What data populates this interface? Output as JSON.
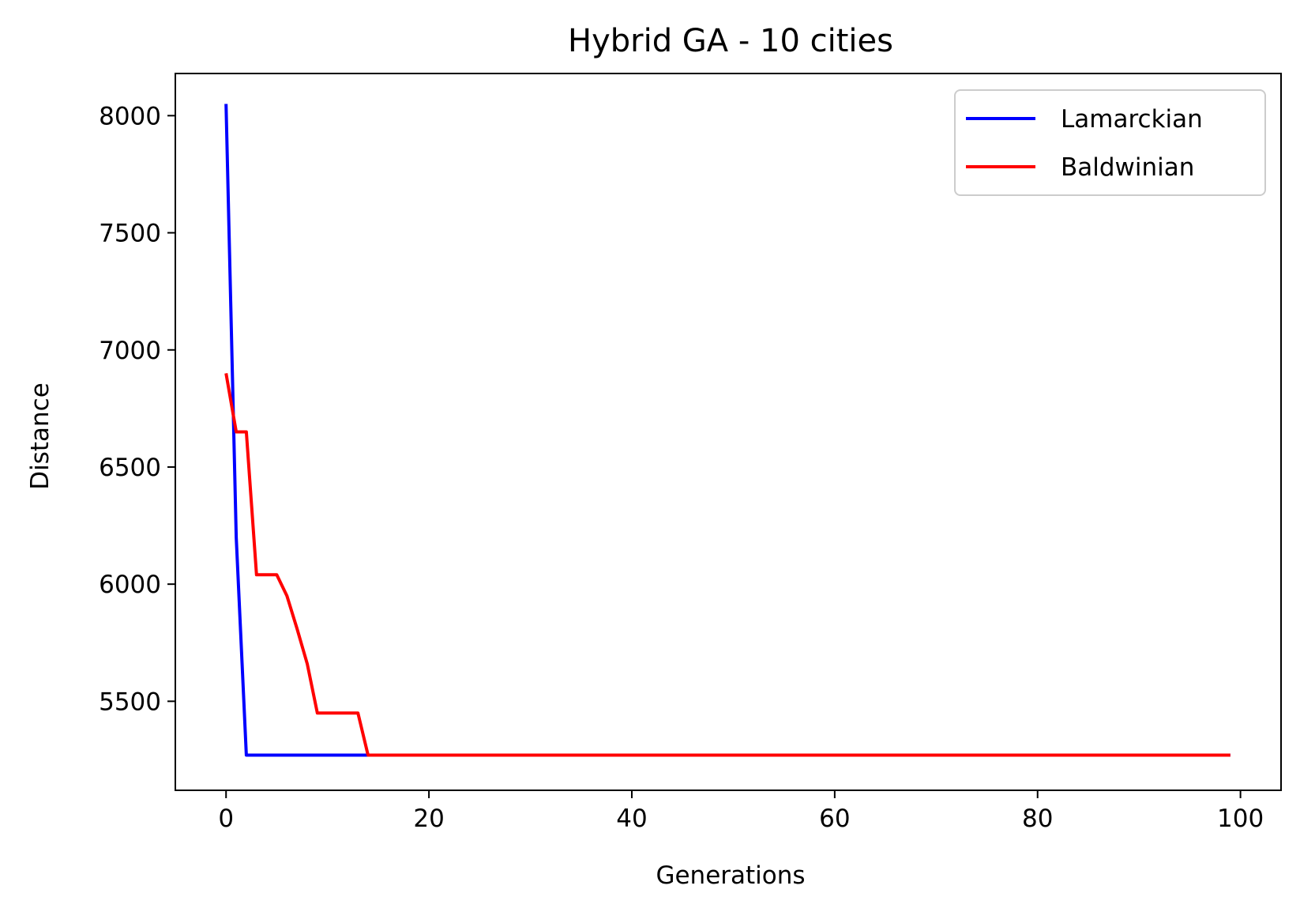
{
  "chart_data": {
    "type": "line",
    "title": "Hybrid GA - 10 cities",
    "xlabel": "Generations",
    "ylabel": "Distance",
    "xlim": [
      -5,
      104
    ],
    "ylim": [
      5120,
      8180
    ],
    "xticks": [
      0,
      20,
      40,
      60,
      80,
      100
    ],
    "yticks": [
      5500,
      6000,
      6500,
      7000,
      7500,
      8000
    ],
    "grid": false,
    "legend_position": "upper right",
    "series": [
      {
        "name": "Lamarckian",
        "color": "#0000ff",
        "x": [
          0,
          1,
          2,
          99
        ],
        "y": [
          8050,
          6200,
          5270,
          5270
        ]
      },
      {
        "name": "Baldwinian",
        "color": "#ff0000",
        "x": [
          0,
          1,
          2,
          3,
          4,
          5,
          6,
          7,
          8,
          9,
          10,
          11,
          12,
          13,
          14,
          99
        ],
        "y": [
          6900,
          6650,
          6650,
          6040,
          6040,
          6040,
          5950,
          5810,
          5660,
          5450,
          5450,
          5450,
          5450,
          5450,
          5270,
          5270
        ]
      }
    ]
  }
}
